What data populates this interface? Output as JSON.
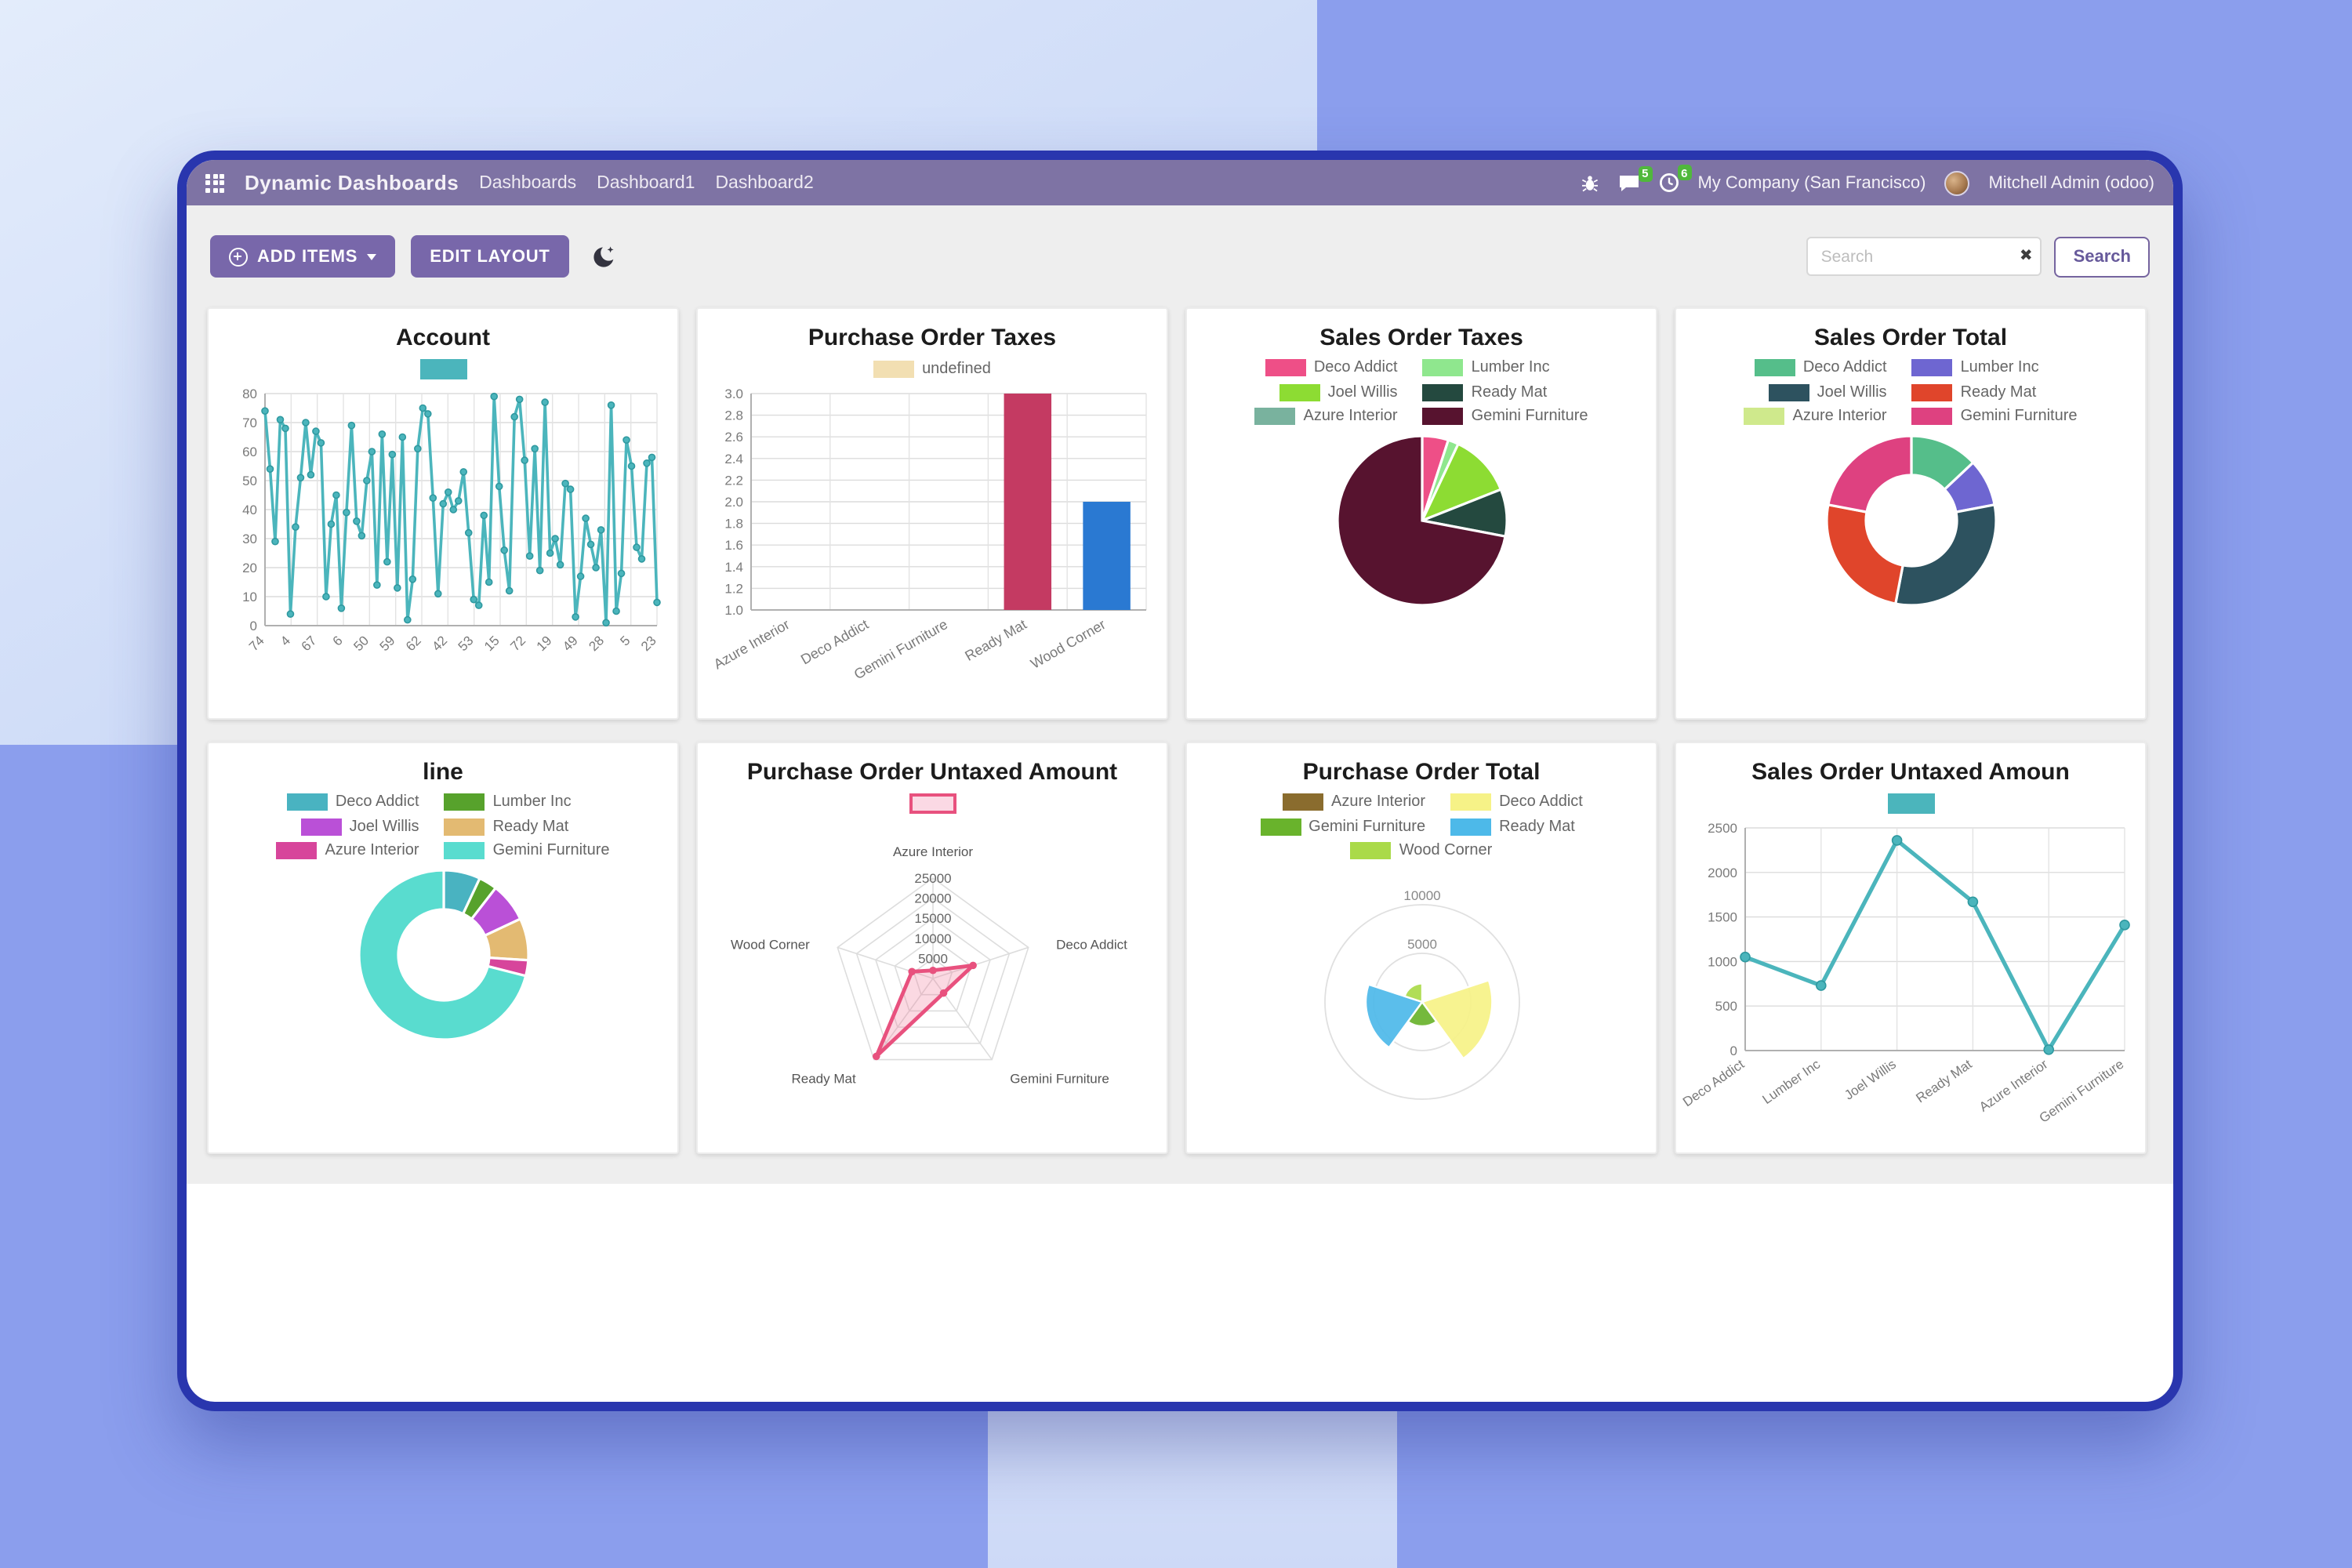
{
  "navbar": {
    "app_title": "Dynamic Dashboards",
    "menus": [
      "Dashboards",
      "Dashboard1",
      "Dashboard2"
    ],
    "icons": [
      "apps-grid-icon",
      "bug-icon",
      "chat-icon",
      "clock-icon"
    ],
    "badges": {
      "chat": "5",
      "activity": "6"
    },
    "company": "My Company (San Francisco)",
    "user": "Mitchell Admin (odoo)",
    "bar_color": "#7e73a4"
  },
  "toolbar": {
    "add_items_label": "ADD ITEMS",
    "edit_layout_label": "EDIT LAYOUT",
    "moon_icon": "dark-mode-moon-icon",
    "search": {
      "placeholder": "Search",
      "clear_icon": "✖",
      "button_label": "Search"
    },
    "accent_color": "#7867aa"
  },
  "chart_data": [
    {
      "title": "Account",
      "type": "line",
      "x": [
        "74",
        "4",
        "67",
        "6",
        "50",
        "59",
        "62",
        "42",
        "53",
        "15",
        "72",
        "19",
        "49",
        "28",
        "5",
        "23"
      ],
      "values": [
        74,
        54,
        29,
        71,
        68,
        4,
        34,
        51,
        70,
        52,
        67,
        63,
        10,
        35,
        45,
        6,
        39,
        69,
        36,
        31,
        50,
        60,
        14,
        66,
        22,
        59,
        13,
        65,
        2,
        16,
        61,
        75,
        73,
        44,
        11,
        42,
        46,
        40,
        43,
        53,
        32,
        9,
        7,
        38,
        15,
        79,
        48,
        26,
        12,
        72,
        78,
        57,
        24,
        61,
        19,
        77,
        25,
        30,
        21,
        49,
        47,
        3,
        17,
        37,
        28,
        20,
        33,
        1,
        76,
        5,
        18,
        64,
        55,
        27,
        23,
        56,
        58,
        8
      ],
      "ylim": [
        0,
        80
      ],
      "ystep": 10,
      "rot": -45,
      "lw": 1.8,
      "pr": 2,
      "color": "#4bb5bc",
      "pstroke": "#2f99a0",
      "legend": {
        "items": [
          {
            "label": "",
            "color": "#4bb5bc"
          }
        ]
      }
    },
    {
      "title": "Purchase Order Taxes",
      "type": "bar",
      "categories": [
        "Azure Interior",
        "Deco Addict",
        "Gemini Furniture",
        "Ready Mat",
        "Wood Corner"
      ],
      "values": [
        null,
        null,
        null,
        3,
        2
      ],
      "bar_colors": [
        "#f2dfb2",
        "#f2dfb2",
        "#f2dfb2",
        "#c43a62",
        "#2a79d2"
      ],
      "ylim": [
        1.0,
        3.0
      ],
      "ystep": 0.2,
      "legend": {
        "items": [
          {
            "label": "undefined",
            "color": "#f2dfb2"
          }
        ]
      }
    },
    {
      "title": "Sales Order Taxes",
      "type": "pie",
      "labels": [
        "Deco Addict",
        "Lumber Inc",
        "Joel Willis",
        "Ready Mat",
        "Azure Interior",
        "Gemini Furniture"
      ],
      "values": [
        5,
        2,
        12,
        9,
        0,
        72
      ],
      "colors": [
        "#ee4f87",
        "#8fe78e",
        "#8ddc33",
        "#24493f",
        "#79b29e",
        "#57132f"
      ]
    },
    {
      "title": "Sales Order Total",
      "type": "doughnut",
      "labels": [
        "Deco Addict",
        "Lumber Inc",
        "Joel Willis",
        "Ready Mat",
        "Azure Interior",
        "Gemini Furniture"
      ],
      "values": [
        13,
        9,
        31,
        25,
        0,
        22
      ],
      "colors": [
        "#55be8a",
        "#6e66d1",
        "#2d525f",
        "#e0452b",
        "#cfe98c",
        "#de4180"
      ]
    },
    {
      "title": "line",
      "type": "doughnut",
      "labels": [
        "Deco Addict",
        "Lumber Inc",
        "Joel Willis",
        "Ready Mat",
        "Azure Interior",
        "Gemini Furniture"
      ],
      "values": [
        7,
        3.5,
        7.5,
        8,
        3,
        71
      ],
      "colors": [
        "#49b3c1",
        "#57a22c",
        "#ba50d7",
        "#e3ba72",
        "#d7459b",
        "#59dccf"
      ]
    },
    {
      "title": "Purchase Order Untaxed Amount",
      "type": "radar",
      "axes": [
        "Azure Interior",
        "Deco Addict",
        "Gemini Furniture",
        "Ready Mat",
        "Wood Corner"
      ],
      "values": [
        2000,
        10500,
        4500,
        24000,
        5500
      ],
      "rings": [
        5000,
        10000,
        15000,
        20000,
        25000
      ],
      "max": 25000,
      "color": "#e8517e",
      "fill": "rgba(240,120,150,0.28)",
      "legend": {
        "items": [
          {
            "label": "",
            "color": "#fbd9e4",
            "border": "#e8517e"
          }
        ]
      }
    },
    {
      "title": "Purchase Order Total",
      "type": "polar",
      "labels": [
        "Azure Interior",
        "Deco Addict",
        "Gemini Furniture",
        "Ready Mat",
        "Wood Corner"
      ],
      "values": [
        0,
        7200,
        2500,
        5800,
        1900
      ],
      "colors": [
        "#8a6c2e",
        "#f6f287",
        "#69b32c",
        "#4db9e9",
        "#aada49"
      ],
      "rings": [
        5000,
        10000
      ],
      "max": 10000
    },
    {
      "title": "Sales Order Untaxed Amoun",
      "type": "line",
      "x": [
        "Deco Addict",
        "Lumber Inc",
        "Joel Willis",
        "Ready Mat",
        "Azure Interior",
        "Gemini Furniture"
      ],
      "values": [
        1050,
        730,
        2360,
        1670,
        10,
        1410
      ],
      "ylim": [
        0,
        2500
      ],
      "ystep": 500,
      "rot": -35,
      "lw": 2.6,
      "pr": 3,
      "padl": 40,
      "padb": 50,
      "color": "#4bb5bc",
      "pstroke": "#2f99a0",
      "legend": {
        "items": [
          {
            "label": "",
            "color": "#4bb5bc"
          }
        ]
      }
    }
  ]
}
